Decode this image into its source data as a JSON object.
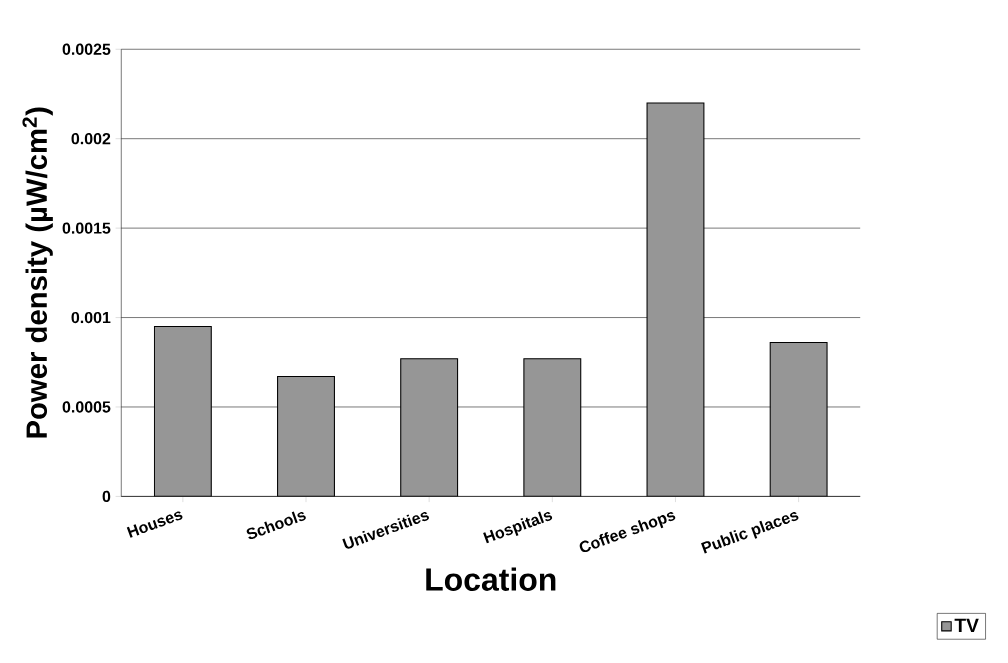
{
  "chart_data": {
    "type": "bar",
    "xlabel": "Location",
    "ylabel": "Power density (µW/cm$^{2}$)",
    "categories": [
      "Houses",
      "Schools",
      "Universities",
      "Hospitals",
      "Coffee shops",
      "Public places"
    ],
    "series": [
      {
        "name": "TV",
        "color": "#969696",
        "values": [
          0.00095,
          0.00067,
          0.00077,
          0.00077,
          0.0022,
          0.00086
        ]
      }
    ],
    "ylim": [
      0,
      0.0025
    ],
    "yticks": [
      0,
      0.0005,
      0.001,
      0.0015,
      0.002,
      0.0025
    ],
    "grid": "y",
    "legend": "bottom right"
  }
}
